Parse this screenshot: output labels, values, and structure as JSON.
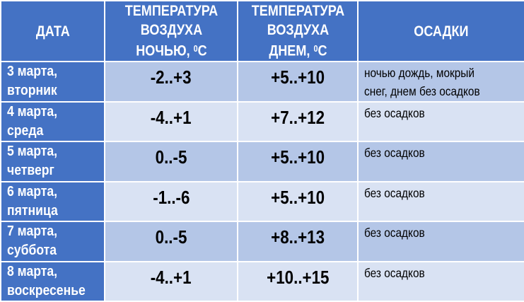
{
  "header": {
    "date": "ДАТА",
    "night": [
      "ТЕМПЕРАТУРА",
      "ВОЗДУХА",
      "НОЧЬЮ, ",
      "0",
      "С"
    ],
    "day": [
      "ТЕМПЕРАТУРА",
      "ВОЗДУХА",
      "ДНЕМ, ",
      "0",
      "С"
    ],
    "precip": "ОСАДКИ"
  },
  "rows": [
    {
      "date1": "3 марта,",
      "date2": "вторник",
      "night": "-2..+3",
      "day": "+5..+10",
      "precip1": "ночью дождь, мокрый",
      "precip2": "снег, днем без осадков"
    },
    {
      "date1": "4 марта,",
      "date2": "среда",
      "night": "-4..+1",
      "day": "+7..+12",
      "precip1": "без осадков"
    },
    {
      "date1": "5 марта,",
      "date2": "четверг",
      "night": "0..-5",
      "day": "+5..+10",
      "precip1": "без осадков"
    },
    {
      "date1": "6 марта,",
      "date2": "пятница",
      "night": "-1..-6",
      "day": "+5..+10",
      "precip1": "без осадков"
    },
    {
      "date1": "7 марта,",
      "date2": "суббота",
      "night": "0..-5",
      "day": "+8..+13",
      "precip1": "без осадков"
    },
    {
      "date1": "8 марта,",
      "date2": "воскресенье",
      "night": "-4..+1",
      "day": "+10..+15",
      "precip1": "без осадков"
    }
  ],
  "colors": {
    "header": "#4472C4",
    "band_dark": "#B4C6E7",
    "band_light": "#D9E2F3"
  }
}
